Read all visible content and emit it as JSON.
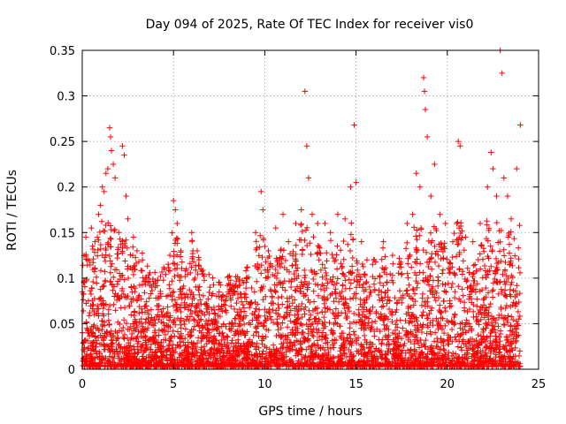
{
  "chart_data": {
    "type": "scatter",
    "title": "Day 094 of 2025, Rate Of TEC Index for receiver vis0",
    "xlabel": "GPS time / hours",
    "ylabel": "ROTI / TECUs",
    "xlim": [
      0,
      25
    ],
    "ylim": [
      0,
      0.35
    ],
    "xticks": [
      "0",
      "5",
      "10",
      "15",
      "20",
      "25"
    ],
    "yticks": [
      "0",
      "0.05",
      "0.1",
      "0.15",
      "0.2",
      "0.25",
      "0.3",
      "0.35"
    ],
    "grid": true,
    "marker": "+",
    "color": "#ff0000",
    "series": [
      {
        "points": [
          [
            0.2,
            0.145
          ],
          [
            0.3,
            0.12
          ],
          [
            0.5,
            0.155
          ],
          [
            0.7,
            0.14
          ],
          [
            0.9,
            0.17
          ],
          [
            1.0,
            0.18
          ],
          [
            1.1,
            0.2
          ],
          [
            1.2,
            0.195
          ],
          [
            1.3,
            0.215
          ],
          [
            1.4,
            0.22
          ],
          [
            1.5,
            0.265
          ],
          [
            1.55,
            0.255
          ],
          [
            1.6,
            0.24
          ],
          [
            1.7,
            0.225
          ],
          [
            1.8,
            0.21
          ],
          [
            2.0,
            0.15
          ],
          [
            2.2,
            0.245
          ],
          [
            2.3,
            0.235
          ],
          [
            2.4,
            0.19
          ],
          [
            2.5,
            0.165
          ],
          [
            2.8,
            0.145
          ],
          [
            3.0,
            0.13
          ],
          [
            3.3,
            0.12
          ],
          [
            3.6,
            0.1
          ],
          [
            4.0,
            0.095
          ],
          [
            4.5,
            0.11
          ],
          [
            4.8,
            0.125
          ],
          [
            5.0,
            0.185
          ],
          [
            5.1,
            0.175
          ],
          [
            5.2,
            0.16
          ],
          [
            5.4,
            0.13
          ],
          [
            5.7,
            0.11
          ],
          [
            6.0,
            0.15
          ],
          [
            6.3,
            0.13
          ],
          [
            6.5,
            0.11
          ],
          [
            7.0,
            0.09
          ],
          [
            7.5,
            0.085
          ],
          [
            8.0,
            0.085
          ],
          [
            8.5,
            0.09
          ],
          [
            9.0,
            0.1
          ],
          [
            9.5,
            0.15
          ],
          [
            9.8,
            0.195
          ],
          [
            9.9,
            0.175
          ],
          [
            10.2,
            0.13
          ],
          [
            10.6,
            0.155
          ],
          [
            11.0,
            0.17
          ],
          [
            11.3,
            0.14
          ],
          [
            11.7,
            0.16
          ],
          [
            12.0,
            0.175
          ],
          [
            12.2,
            0.305
          ],
          [
            12.3,
            0.245
          ],
          [
            12.4,
            0.21
          ],
          [
            12.6,
            0.17
          ],
          [
            12.9,
            0.16
          ],
          [
            13.3,
            0.16
          ],
          [
            13.6,
            0.15
          ],
          [
            14.0,
            0.17
          ],
          [
            14.4,
            0.165
          ],
          [
            14.7,
            0.2
          ],
          [
            14.9,
            0.268
          ],
          [
            15.0,
            0.205
          ],
          [
            15.3,
            0.14
          ],
          [
            15.6,
            0.12
          ],
          [
            16.0,
            0.12
          ],
          [
            16.5,
            0.14
          ],
          [
            17.0,
            0.125
          ],
          [
            17.4,
            0.115
          ],
          [
            17.8,
            0.16
          ],
          [
            18.1,
            0.17
          ],
          [
            18.3,
            0.215
          ],
          [
            18.5,
            0.2
          ],
          [
            18.7,
            0.32
          ],
          [
            18.75,
            0.305
          ],
          [
            18.8,
            0.285
          ],
          [
            18.9,
            0.255
          ],
          [
            19.1,
            0.19
          ],
          [
            19.3,
            0.225
          ],
          [
            19.6,
            0.17
          ],
          [
            19.9,
            0.16
          ],
          [
            20.3,
            0.14
          ],
          [
            20.6,
            0.25
          ],
          [
            20.7,
            0.245
          ],
          [
            21.0,
            0.145
          ],
          [
            21.4,
            0.14
          ],
          [
            21.8,
            0.16
          ],
          [
            22.2,
            0.2
          ],
          [
            22.4,
            0.238
          ],
          [
            22.5,
            0.22
          ],
          [
            22.7,
            0.19
          ],
          [
            22.9,
            0.35
          ],
          [
            23.0,
            0.325
          ],
          [
            23.1,
            0.21
          ],
          [
            23.3,
            0.19
          ],
          [
            23.5,
            0.165
          ],
          [
            23.8,
            0.22
          ],
          [
            24.0,
            0.268
          ]
        ]
      }
    ]
  }
}
